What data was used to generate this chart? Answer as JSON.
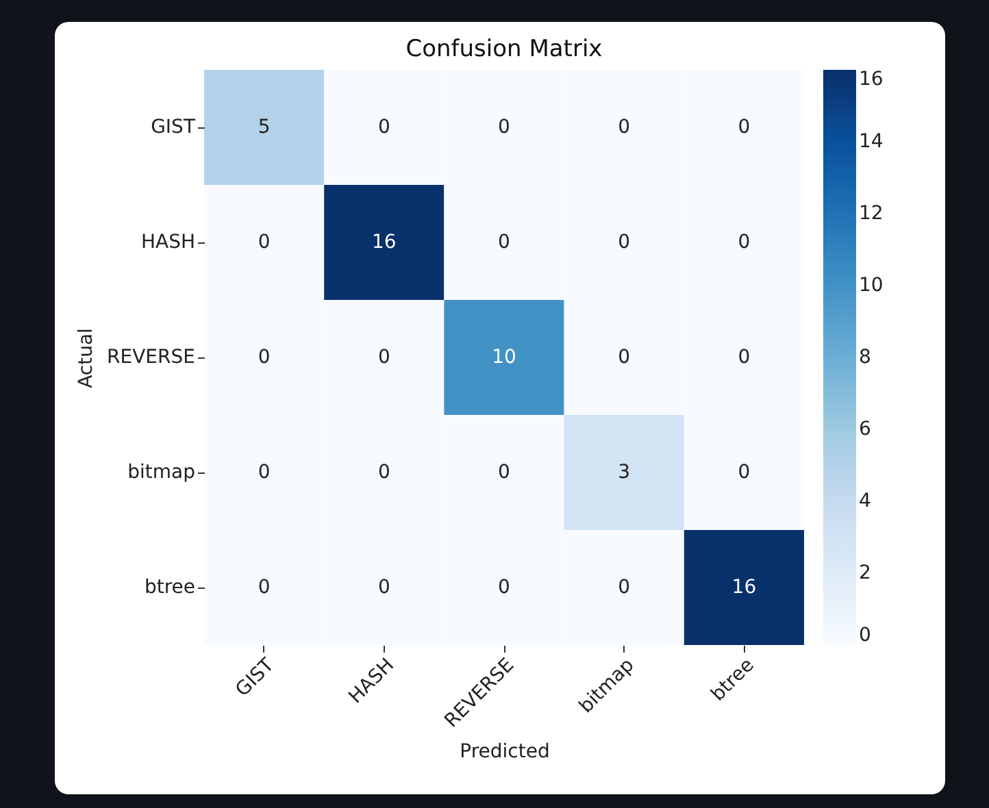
{
  "chart_data": {
    "type": "heatmap",
    "title": "Confusion Matrix",
    "xlabel": "Predicted",
    "ylabel": "Actual",
    "categories": [
      "GIST",
      "HASH",
      "REVERSE",
      "bitmap",
      "btree"
    ],
    "y_categories": [
      "GIST",
      "HASH",
      "REVERSE",
      "bitmap",
      "btree"
    ],
    "cells": [
      [
        5,
        0,
        0,
        0,
        0
      ],
      [
        0,
        16,
        0,
        0,
        0
      ],
      [
        0,
        0,
        10,
        0,
        0
      ],
      [
        0,
        0,
        0,
        3,
        0
      ],
      [
        0,
        0,
        0,
        0,
        16
      ]
    ],
    "data_labels": true,
    "clim": [
      0,
      16
    ],
    "cticks": [
      0,
      2,
      4,
      6,
      8,
      10,
      12,
      14,
      16
    ]
  }
}
